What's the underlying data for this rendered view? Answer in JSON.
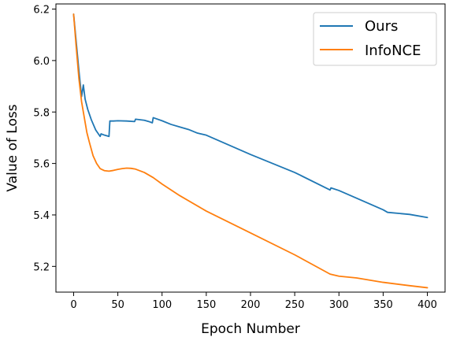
{
  "chart_data": {
    "type": "line",
    "title": "",
    "xlabel": "Epoch Number",
    "ylabel": "Value of Loss",
    "xlim": [
      -20,
      420
    ],
    "ylim": [
      5.1,
      6.22
    ],
    "xticks": [
      0,
      50,
      100,
      150,
      200,
      250,
      300,
      350,
      400
    ],
    "yticks": [
      5.2,
      5.4,
      5.6,
      5.8,
      6.0,
      6.2
    ],
    "grid": false,
    "legend_position": "top-right",
    "series": [
      {
        "name": "Ours",
        "color": "#1f77b4",
        "x": [
          0,
          3,
          6,
          9,
          11,
          13,
          16,
          20,
          25,
          30,
          31,
          35,
          40,
          41,
          45,
          50,
          60,
          69,
          70,
          80,
          85,
          89,
          90,
          100,
          110,
          120,
          130,
          140,
          150,
          200,
          250,
          290,
          291,
          300,
          350,
          355,
          380,
          400
        ],
        "values": [
          6.18,
          6.07,
          5.96,
          5.86,
          5.905,
          5.85,
          5.81,
          5.77,
          5.73,
          5.705,
          5.715,
          5.71,
          5.705,
          5.765,
          5.765,
          5.766,
          5.765,
          5.763,
          5.772,
          5.768,
          5.763,
          5.758,
          5.778,
          5.766,
          5.752,
          5.742,
          5.732,
          5.718,
          5.71,
          5.635,
          5.565,
          5.497,
          5.505,
          5.495,
          5.42,
          5.41,
          5.402,
          5.39
        ]
      },
      {
        "name": "InfoNCE",
        "color": "#ff7f0e",
        "x": [
          0,
          3,
          6,
          9,
          12,
          15,
          18,
          22,
          26,
          30,
          35,
          40,
          45,
          50,
          55,
          60,
          65,
          70,
          80,
          90,
          100,
          120,
          150,
          200,
          250,
          290,
          300,
          320,
          350,
          380,
          400
        ],
        "values": [
          6.18,
          6.05,
          5.93,
          5.84,
          5.78,
          5.72,
          5.68,
          5.63,
          5.6,
          5.58,
          5.572,
          5.57,
          5.573,
          5.577,
          5.58,
          5.582,
          5.581,
          5.578,
          5.565,
          5.545,
          5.52,
          5.475,
          5.415,
          5.33,
          5.245,
          5.17,
          5.162,
          5.155,
          5.138,
          5.125,
          5.117
        ]
      }
    ]
  }
}
